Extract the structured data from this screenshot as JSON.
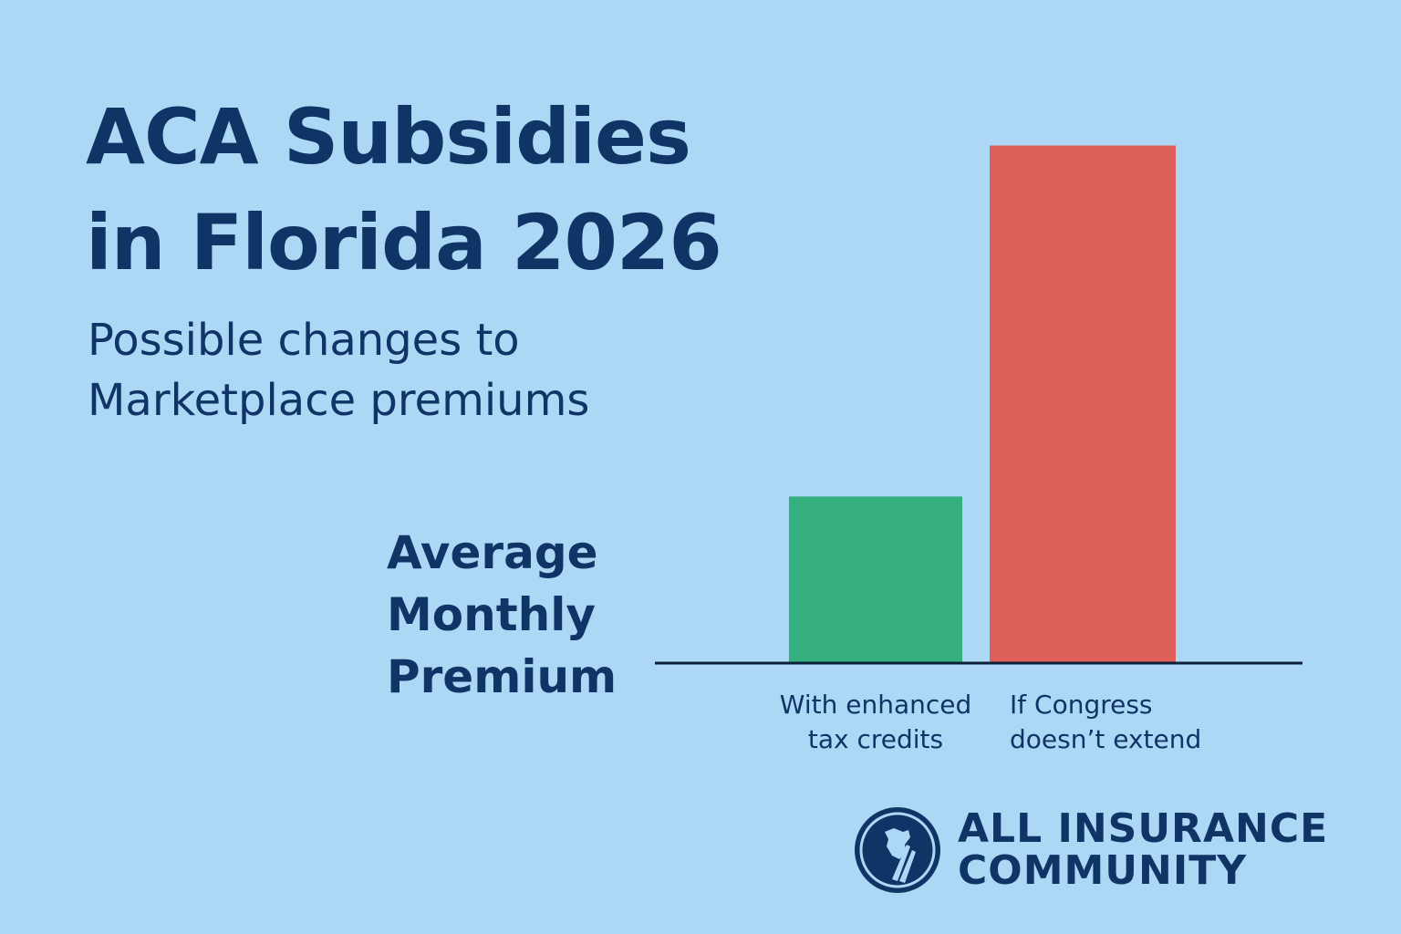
{
  "title_lines": [
    "ACA Subsidies",
    "in Florida 2026"
  ],
  "subtitle_lines": [
    "Possible changes to",
    "Marketplace premiums"
  ],
  "ylabel_lines": [
    "Average",
    "Monthly",
    "Premium"
  ],
  "chart_data": {
    "type": "bar",
    "title": "ACA Subsidies in Florida 2026",
    "subtitle": "Possible changes to Marketplace premiums",
    "ylabel": "Average Monthly Premium",
    "xlabel": "",
    "categories": [
      [
        "With enhanced",
        "tax credits"
      ],
      [
        "If Congress",
        "doesn’t extend"
      ]
    ],
    "values": [
      32,
      100
    ],
    "value_units": "relative (no axis values shown)",
    "ylim": [
      0,
      100
    ],
    "colors": [
      "#36b07f",
      "#dd5f5a"
    ],
    "grid": false,
    "legend": "none"
  },
  "logo": {
    "icon": "shield-road-logo-icon",
    "lines": [
      "ALL INSURANCE",
      "COMMUNITY"
    ]
  },
  "colors": {
    "background": "#add8f5",
    "text": "#0f3566",
    "baseline": "#0c1f3a"
  }
}
